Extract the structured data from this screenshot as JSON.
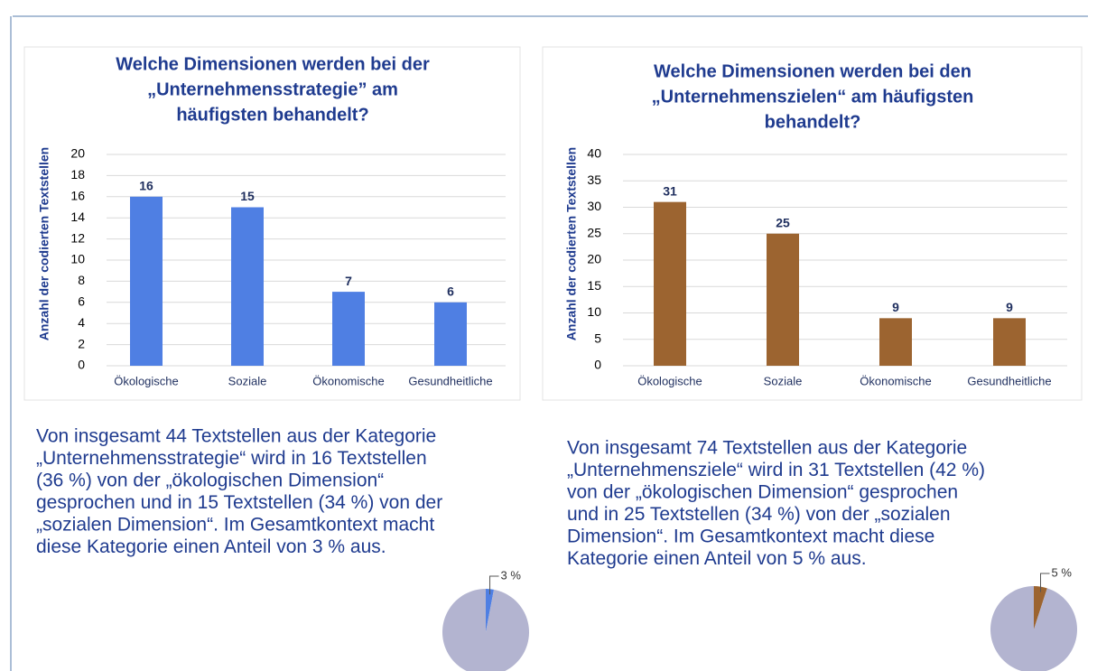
{
  "chart_data": [
    {
      "type": "bar",
      "title": [
        "Welche Dimensionen werden bei der",
        "„Unternehmensstrategie” am",
        "häufigsten behandelt?"
      ],
      "y_label": "Anzahl der codierten Textstellen",
      "categories": [
        "Ökologische",
        "Soziale",
        "Ökonomische",
        "Gesundheitliche"
      ],
      "values": [
        16,
        15,
        7,
        6
      ],
      "color": "#4f7fe3",
      "ylim": [
        0,
        20
      ],
      "yticks": [
        0,
        2,
        4,
        6,
        8,
        10,
        12,
        14,
        16,
        18,
        20
      ],
      "grid": true
    },
    {
      "type": "bar",
      "title": [
        "Welche Dimensionen werden bei den",
        "„Unternehmenszielen“ am häufigsten",
        "behandelt?"
      ],
      "y_label": "Anzahl der codierten Textstellen",
      "categories": [
        "Ökologische",
        "Soziale",
        "Ökonomische",
        "Gesundheitliche"
      ],
      "values": [
        31,
        25,
        9,
        9
      ],
      "color": "#9c6430",
      "ylim": [
        0,
        40
      ],
      "yticks": [
        0,
        5,
        10,
        15,
        20,
        25,
        30,
        35,
        40
      ],
      "grid": true
    },
    {
      "type": "pie",
      "values": [
        3,
        97
      ],
      "value_labels": [
        "3 %",
        null
      ],
      "colors": [
        "#4f7fe3",
        "#b3b4d0"
      ]
    },
    {
      "type": "pie",
      "values": [
        5,
        95
      ],
      "value_labels": [
        "5 %",
        null
      ],
      "colors": [
        "#9c6430",
        "#b3b4d0"
      ]
    }
  ],
  "texts": [
    [
      "Von insgesamt 44 Textstellen aus der Kategorie",
      "„Unternehmensstrategie“ wird in 16 Textstellen",
      "(36 %) von der „ökologischen Dimension“",
      "gesprochen und in 15 Textstellen (34 %) von der",
      "„sozialen Dimension“. Im Gesamtkontext macht",
      "diese Kategorie einen Anteil von 3 % aus."
    ],
    [
      "Von insgesamt 74 Textstellen aus der Kategorie",
      "„Unternehmensziele“ wird in 31 Textstellen (42 %)",
      "von der „ökologischen Dimension“ gesprochen",
      "und in 25 Textstellen (34 %) von der „sozialen",
      "Dimension“. Im Gesamtkontext macht diese",
      "Kategorie einen Anteil von 5 % aus."
    ]
  ]
}
